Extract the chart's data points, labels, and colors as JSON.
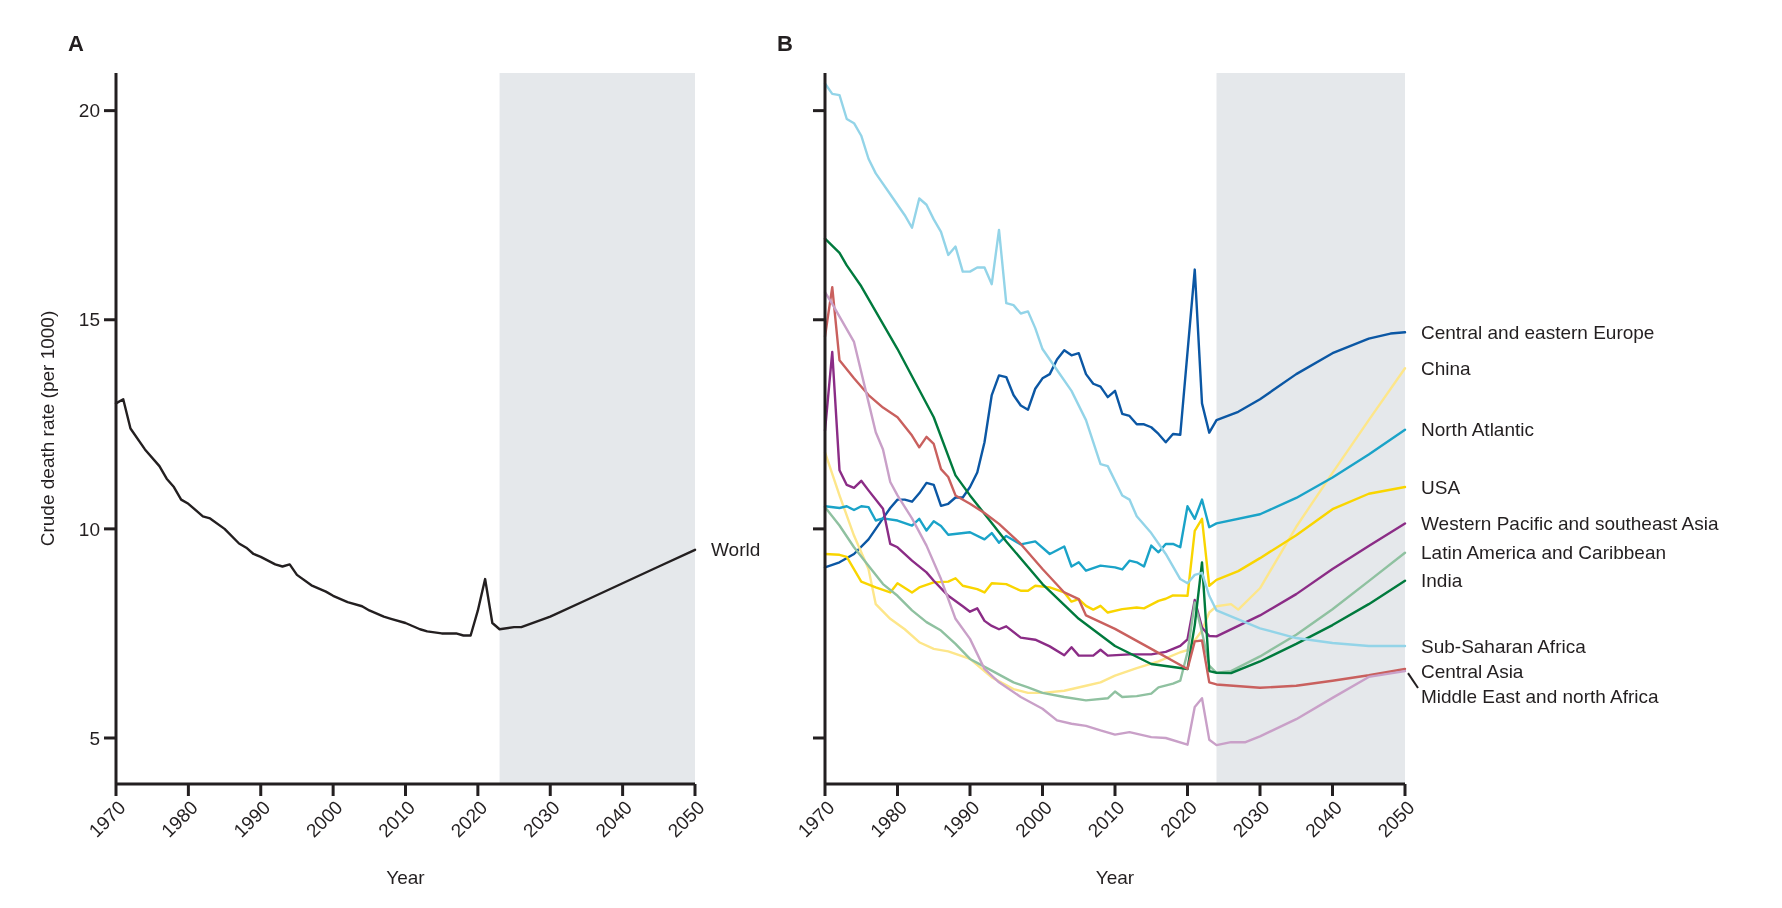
{
  "chart_data": [
    {
      "type": "line",
      "title": "A",
      "xlabel": "Year",
      "ylabel": "Crude death rate (per 1000)",
      "xlim": [
        1970,
        2050
      ],
      "xticks": [
        1970,
        1980,
        1990,
        2000,
        2010,
        2020,
        2030,
        2040,
        2050
      ],
      "ylim": [
        3.9,
        20.9
      ],
      "yticks": [
        5,
        10,
        15,
        20
      ],
      "bands": [
        {
          "axis": "x",
          "from": 2023,
          "to": 2050,
          "color": "#e5e8eb"
        }
      ],
      "series": [
        {
          "name": "World",
          "color": "#231f20",
          "x": [
            1970,
            1971,
            1972,
            1974,
            1976,
            1977,
            1978,
            1979,
            1980,
            1982,
            1983,
            1985,
            1987,
            1988,
            1989,
            1990,
            1992,
            1993,
            1994,
            1995,
            1997,
            1999,
            2000,
            2002,
            2004,
            2005,
            2007,
            2008,
            2010,
            2012,
            2013,
            2015,
            2017,
            2018,
            2019,
            2020,
            2021,
            2022,
            2023,
            2025,
            2026,
            2030,
            2035,
            2040,
            2045,
            2050
          ],
          "values": [
            13.0,
            13.1,
            12.4,
            11.9,
            11.5,
            11.2,
            11.0,
            10.7,
            10.6,
            10.3,
            10.25,
            10.0,
            9.65,
            9.55,
            9.4,
            9.33,
            9.15,
            9.1,
            9.15,
            8.9,
            8.65,
            8.5,
            8.4,
            8.25,
            8.15,
            8.05,
            7.9,
            7.85,
            7.75,
            7.6,
            7.55,
            7.5,
            7.5,
            7.45,
            7.45,
            8.05,
            8.8,
            7.75,
            7.6,
            7.65,
            7.65,
            7.9,
            8.3,
            8.7,
            9.1,
            9.5
          ]
        }
      ]
    },
    {
      "type": "line",
      "title": "B",
      "xlabel": "Year",
      "xlim": [
        1970,
        2050
      ],
      "xticks": [
        1970,
        1980,
        1990,
        2000,
        2010,
        2020,
        2030,
        2040,
        2050
      ],
      "ylim": [
        3.9,
        20.9
      ],
      "yticks": [
        5,
        10,
        15,
        20
      ],
      "tick_labels": "x",
      "bands": [
        {
          "axis": "x",
          "from": 2024,
          "to": 2050,
          "color": "#e5e8eb"
        }
      ],
      "series": [
        {
          "name": "Central and eastern Europe",
          "color": "#0b57a4",
          "x": [
            1970,
            1972,
            1974,
            1976,
            1978,
            1979,
            1980,
            1981,
            1982,
            1983,
            1984,
            1985,
            1986,
            1987,
            1988,
            1989,
            1990,
            1991,
            1992,
            1993,
            1994,
            1995,
            1996,
            1997,
            1998,
            1999,
            2000,
            2001,
            2002,
            2003,
            2004,
            2005,
            2006,
            2007,
            2008,
            2009,
            2010,
            2011,
            2012,
            2013,
            2014,
            2015,
            2016,
            2017,
            2018,
            2019,
            2021,
            2022,
            2023,
            2024,
            2027,
            2030,
            2035,
            2040,
            2045,
            2048,
            2050
          ],
          "values": [
            9.08,
            9.2,
            9.4,
            9.75,
            10.25,
            10.5,
            10.7,
            10.7,
            10.65,
            10.85,
            11.1,
            11.05,
            10.55,
            10.6,
            10.75,
            10.75,
            11.0,
            11.35,
            12.07,
            13.2,
            13.67,
            13.63,
            13.2,
            12.95,
            12.85,
            13.35,
            13.6,
            13.7,
            14.05,
            14.27,
            14.15,
            14.2,
            13.7,
            13.47,
            13.4,
            13.15,
            13.3,
            12.75,
            12.7,
            12.5,
            12.5,
            12.43,
            12.27,
            12.07,
            12.27,
            12.25,
            16.2,
            13.0,
            12.3,
            12.6,
            12.8,
            13.1,
            13.7,
            14.2,
            14.55,
            14.67,
            14.7
          ]
        },
        {
          "name": "China",
          "color": "#fde68a",
          "x": [
            1970,
            1972,
            1974,
            1976,
            1977,
            1979,
            1981,
            1983,
            1985,
            1987,
            1990,
            1993,
            1996,
            1998,
            2000,
            2003,
            2006,
            2008,
            2010,
            2013,
            2016,
            2019,
            2020,
            2022,
            2023,
            2024,
            2026,
            2027,
            2030,
            2035,
            2040,
            2045,
            2050
          ],
          "values": [
            11.83,
            10.8,
            9.84,
            9.04,
            8.2,
            7.85,
            7.6,
            7.29,
            7.13,
            7.07,
            6.89,
            6.45,
            6.17,
            6.08,
            6.08,
            6.13,
            6.25,
            6.33,
            6.49,
            6.67,
            6.83,
            7.05,
            7.1,
            7.57,
            8.0,
            8.15,
            8.2,
            8.07,
            8.58,
            10.05,
            11.34,
            12.6,
            13.84
          ]
        },
        {
          "name": "North Atlantic",
          "color": "#1aa3c8",
          "x": [
            1970,
            1972,
            1973,
            1974,
            1975,
            1976,
            1977,
            1978,
            1980,
            1982,
            1983,
            1984,
            1985,
            1986,
            1987,
            1990,
            1992,
            1993,
            1994,
            1995,
            1997,
            1999,
            2001,
            2003,
            2004,
            2005,
            2006,
            2008,
            2010,
            2011,
            2012,
            2013,
            2014,
            2015,
            2016,
            2017,
            2018,
            2019,
            2020,
            2021,
            2022,
            2023,
            2024,
            2030,
            2035,
            2040,
            2045,
            2050
          ],
          "values": [
            10.54,
            10.5,
            10.54,
            10.45,
            10.54,
            10.52,
            10.2,
            10.25,
            10.2,
            10.08,
            10.24,
            9.96,
            10.18,
            10.07,
            9.86,
            9.92,
            9.75,
            9.9,
            9.67,
            9.83,
            9.63,
            9.7,
            9.4,
            9.58,
            9.1,
            9.2,
            9.0,
            9.12,
            9.08,
            9.03,
            9.24,
            9.2,
            9.1,
            9.6,
            9.44,
            9.64,
            9.64,
            9.56,
            10.54,
            10.24,
            10.7,
            10.04,
            10.13,
            10.35,
            10.74,
            11.23,
            11.78,
            12.37
          ]
        },
        {
          "name": "USA",
          "color": "#f9d500",
          "x": [
            1970,
            1972,
            1973,
            1975,
            1977,
            1979,
            1980,
            1982,
            1983,
            1985,
            1987,
            1988,
            1989,
            1991,
            1992,
            1993,
            1995,
            1997,
            1998,
            1999,
            2001,
            2003,
            2004,
            2005,
            2006,
            2007,
            2008,
            2009,
            2011,
            2013,
            2014,
            2016,
            2017,
            2018,
            2020,
            2021,
            2022,
            2023,
            2024,
            2027,
            2030,
            2035,
            2040,
            2045,
            2050
          ],
          "values": [
            9.4,
            9.38,
            9.33,
            8.74,
            8.6,
            8.48,
            8.7,
            8.48,
            8.6,
            8.72,
            8.74,
            8.82,
            8.64,
            8.56,
            8.48,
            8.7,
            8.68,
            8.52,
            8.52,
            8.64,
            8.6,
            8.48,
            8.26,
            8.32,
            8.16,
            8.07,
            8.16,
            8.0,
            8.08,
            8.12,
            8.1,
            8.28,
            8.33,
            8.41,
            8.4,
            9.95,
            10.24,
            8.64,
            8.78,
            8.99,
            9.3,
            9.85,
            10.47,
            10.84,
            11.0
          ]
        },
        {
          "name": "Western Pacific and southeast Asia",
          "color": "#8b2c86",
          "x": [
            1970,
            1971,
            1972,
            1973,
            1974,
            1975,
            1976,
            1978,
            1979,
            1980,
            1982,
            1984,
            1985,
            1987,
            1989,
            1990,
            1991,
            1992,
            1993,
            1994,
            1995,
            1997,
            1999,
            2001,
            2003,
            2004,
            2005,
            2007,
            2008,
            2009,
            2012,
            2015,
            2017,
            2019,
            2020,
            2021,
            2022,
            2023,
            2024,
            2030,
            2035,
            2040,
            2045,
            2050
          ],
          "values": [
            12.35,
            14.23,
            11.4,
            11.05,
            10.98,
            11.15,
            10.92,
            10.48,
            9.64,
            9.56,
            9.24,
            8.96,
            8.76,
            8.4,
            8.15,
            8.02,
            8.1,
            7.8,
            7.68,
            7.6,
            7.67,
            7.4,
            7.35,
            7.19,
            6.98,
            7.17,
            6.97,
            6.97,
            7.11,
            6.97,
            7.0,
            7.0,
            7.06,
            7.2,
            7.36,
            8.3,
            7.64,
            7.44,
            7.43,
            7.93,
            8.44,
            9.04,
            9.59,
            10.13
          ]
        },
        {
          "name": "Latin America and Caribbean",
          "color": "#8fc1a0",
          "x": [
            1970,
            1972,
            1974,
            1976,
            1978,
            1980,
            1982,
            1984,
            1986,
            1988,
            1990,
            1993,
            1996,
            1998,
            2000,
            2003,
            2006,
            2009,
            2010,
            2011,
            2013,
            2015,
            2016,
            2018,
            2019,
            2020,
            2021,
            2022,
            2023,
            2024,
            2026,
            2030,
            2035,
            2040,
            2045,
            2050
          ],
          "values": [
            10.52,
            10.08,
            9.56,
            9.12,
            8.68,
            8.4,
            8.05,
            7.77,
            7.57,
            7.25,
            6.89,
            6.61,
            6.33,
            6.21,
            6.08,
            5.98,
            5.9,
            5.95,
            6.11,
            5.98,
            6.0,
            6.06,
            6.21,
            6.3,
            6.37,
            7.05,
            8.24,
            7.53,
            6.73,
            6.56,
            6.6,
            6.95,
            7.47,
            8.08,
            8.75,
            9.43
          ]
        },
        {
          "name": "India",
          "color": "#007a3d",
          "x": [
            1970,
            1972,
            1973,
            1975,
            1980,
            1985,
            1988,
            1990,
            1995,
            2000,
            2005,
            2010,
            2015,
            2020,
            2021,
            2022,
            2023,
            2024,
            2026,
            2030,
            2035,
            2040,
            2045,
            2050
          ],
          "values": [
            16.94,
            16.6,
            16.3,
            15.8,
            14.3,
            12.67,
            11.28,
            10.8,
            9.7,
            8.68,
            7.85,
            7.2,
            6.77,
            6.65,
            7.7,
            9.2,
            6.6,
            6.56,
            6.55,
            6.83,
            7.25,
            7.7,
            8.2,
            8.76
          ]
        },
        {
          "name": "Sub-Saharan Africa",
          "color": "#93d4e8",
          "x": [
            1970,
            1971,
            1972,
            1973,
            1974,
            1975,
            1976,
            1977,
            1979,
            1981,
            1982,
            1983,
            1984,
            1985,
            1986,
            1987,
            1988,
            1989,
            1990,
            1991,
            1992,
            1993,
            1994,
            1995,
            1996,
            1997,
            1998,
            1999,
            2000,
            2002,
            2004,
            2006,
            2008,
            2009,
            2011,
            2012,
            2013,
            2015,
            2017,
            2019,
            2020,
            2021,
            2022,
            2023,
            2024,
            2030,
            2035,
            2040,
            2045,
            2050
          ],
          "values": [
            20.65,
            20.4,
            20.37,
            19.8,
            19.7,
            19.4,
            18.85,
            18.5,
            18.0,
            17.5,
            17.2,
            17.9,
            17.75,
            17.4,
            17.1,
            16.55,
            16.75,
            16.15,
            16.15,
            16.25,
            16.25,
            15.85,
            17.15,
            15.4,
            15.35,
            15.15,
            15.2,
            14.8,
            14.3,
            13.8,
            13.3,
            12.6,
            11.55,
            11.5,
            10.8,
            10.7,
            10.3,
            9.9,
            9.4,
            8.8,
            8.7,
            8.9,
            8.95,
            8.4,
            8.05,
            7.62,
            7.39,
            7.27,
            7.2,
            7.2
          ]
        },
        {
          "name": "Central Asia",
          "color": "#c9605e",
          "x": [
            1970,
            1971,
            1972,
            1974,
            1976,
            1978,
            1980,
            1982,
            1983,
            1984,
            1985,
            1986,
            1987,
            1988,
            1990,
            1992,
            1994,
            1997,
            2000,
            2003,
            2005,
            2006,
            2010,
            2015,
            2020,
            2021,
            2022,
            2023,
            2024,
            2030,
            2035,
            2040,
            2045,
            2050
          ],
          "values": [
            14.6,
            15.78,
            14.03,
            13.6,
            13.2,
            12.9,
            12.67,
            12.23,
            11.95,
            12.2,
            12.03,
            11.43,
            11.24,
            10.8,
            10.6,
            10.38,
            10.12,
            9.64,
            9.04,
            8.48,
            8.32,
            7.93,
            7.61,
            7.13,
            6.65,
            7.31,
            7.33,
            6.33,
            6.28,
            6.2,
            6.25,
            6.37,
            6.5,
            6.65
          ]
        },
        {
          "name": "Middle East and north Africa",
          "color": "#c9a0c8",
          "x": [
            1970,
            1971,
            1974,
            1976,
            1977,
            1978,
            1979,
            1980,
            1982,
            1984,
            1986,
            1988,
            1990,
            1992,
            1994,
            1997,
            2000,
            2002,
            2004,
            2006,
            2008,
            2010,
            2012,
            2015,
            2017,
            2020,
            2021,
            2022,
            2023,
            2024,
            2026,
            2028,
            2030,
            2035,
            2040,
            2045,
            2050
          ],
          "values": [
            15.66,
            15.38,
            14.47,
            13.03,
            12.31,
            11.9,
            11.12,
            10.8,
            10.25,
            9.6,
            8.8,
            7.85,
            7.37,
            6.65,
            6.33,
            5.98,
            5.7,
            5.42,
            5.34,
            5.29,
            5.18,
            5.08,
            5.14,
            5.02,
            5.0,
            4.84,
            5.74,
            5.95,
            4.96,
            4.83,
            4.9,
            4.9,
            5.04,
            5.45,
            5.96,
            6.46,
            6.6
          ]
        }
      ]
    }
  ]
}
